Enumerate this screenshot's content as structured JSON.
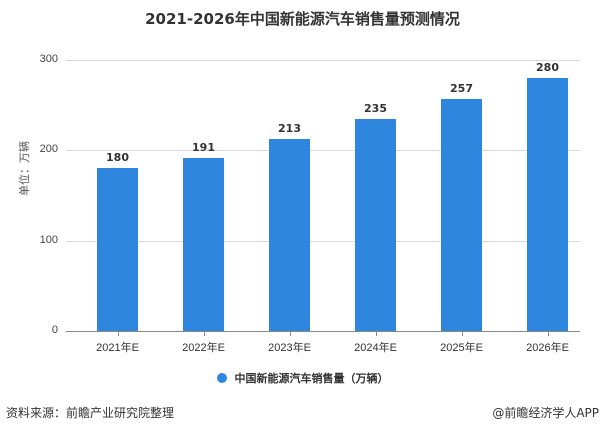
{
  "header": {
    "title": "2021-2026年中国新能源汽车销售量预测情况"
  },
  "axis": {
    "y_label": "单位：万辆",
    "y_ticks": [
      "0",
      "100",
      "200",
      "300"
    ]
  },
  "legend": {
    "label": "中国新能源汽车销售量（万辆）",
    "color": "#2e86de"
  },
  "footer": {
    "source": "资料来源：前瞻产业研究院整理",
    "credit": "@前瞻经济学人APP"
  },
  "chart_data": {
    "type": "bar",
    "title": "2021-2026年中国新能源汽车销售量预测情况",
    "categories": [
      "2021年E",
      "2022年E",
      "2023年E",
      "2024年E",
      "2025年E",
      "2026年E"
    ],
    "series": [
      {
        "name": "中国新能源汽车销售量（万辆）",
        "values": [
          180,
          191,
          213,
          235,
          257,
          280
        ],
        "color": "#2e86de"
      }
    ],
    "values": [
      180,
      191,
      213,
      235,
      257,
      280
    ],
    "xlabel": "",
    "ylabel": "单位：万辆",
    "ylim": [
      0,
      300
    ],
    "yticks": [
      0,
      100,
      200,
      300
    ],
    "grid": true,
    "legend_position": "bottom",
    "data_labels": true
  }
}
